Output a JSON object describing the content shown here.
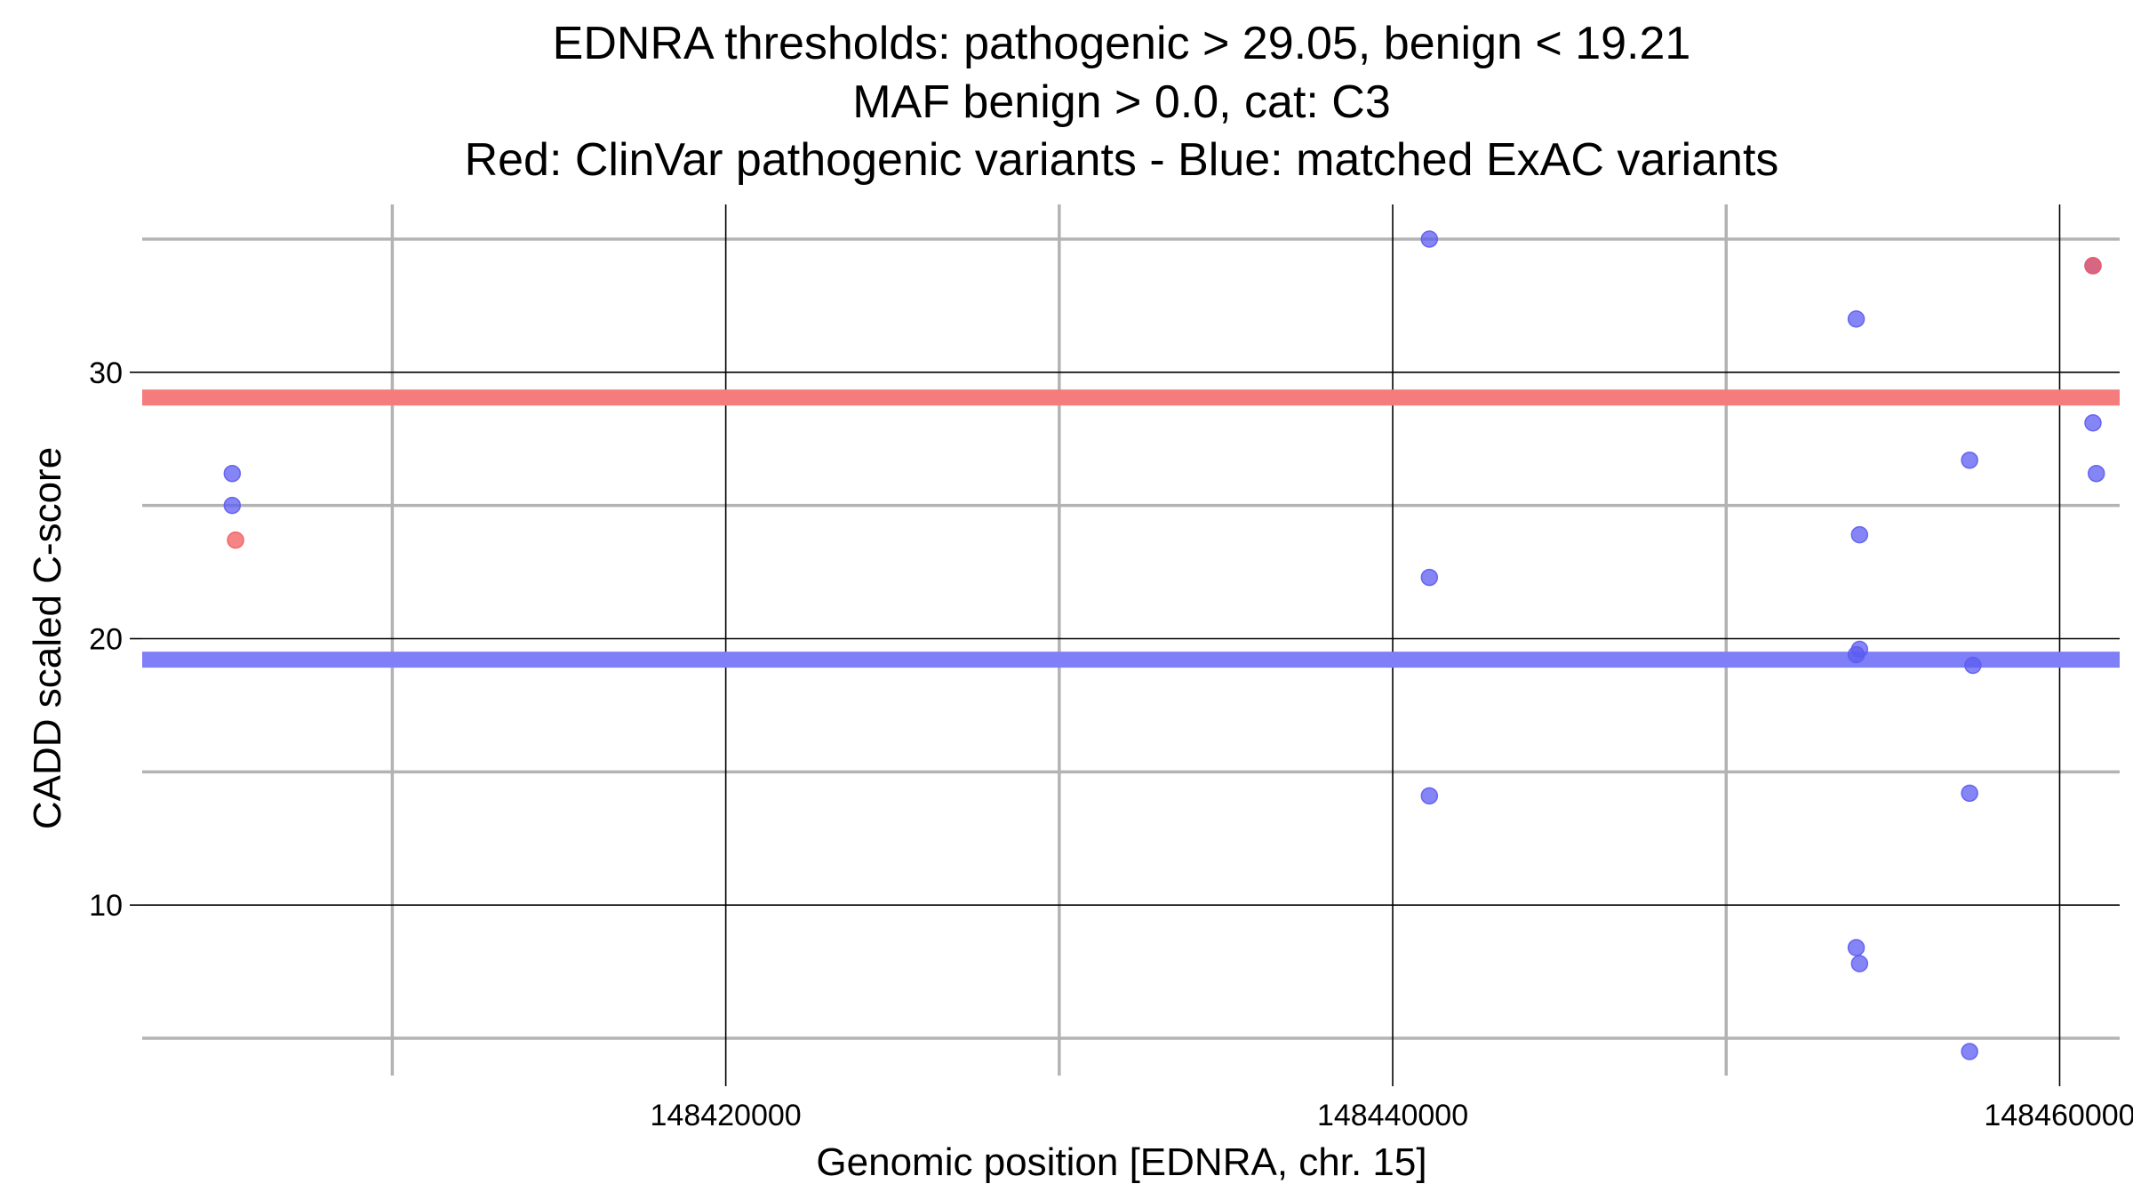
{
  "chart_data": {
    "type": "scatter",
    "title_lines": [
      "EDNRA thresholds: pathogenic > 29.05, benign < 19.21",
      "MAF benign > 0.0, cat: C3",
      "Red: ClinVar pathogenic variants - Blue: matched ExAC variants"
    ],
    "xlabel": "Genomic position [EDNRA, chr. 15]",
    "ylabel": "CADD scaled C-score",
    "xlim": [
      148402500,
      148461800
    ],
    "ylim": [
      3.6,
      36.3
    ],
    "x_ticks": [
      148420000,
      148440000,
      148460000
    ],
    "x_tick_labels": [
      "148420000",
      "148440000",
      "148460000"
    ],
    "x_minor_gridlines": [
      148410000,
      148430000,
      148450000
    ],
    "y_ticks": [
      10,
      20,
      30
    ],
    "y_tick_labels": [
      "10",
      "20",
      "30"
    ],
    "y_minor_gridlines": [
      5,
      15,
      25,
      35
    ],
    "grid": true,
    "thresholds": [
      {
        "name": "pathogenic",
        "value": 29.05,
        "color": "#f47c7c"
      },
      {
        "name": "benign",
        "value": 19.21,
        "color": "#7f7ff7"
      }
    ],
    "series": [
      {
        "color": "#5c5cf2",
        "points": [
          {
            "x": 148405200,
            "y": 26.2
          },
          {
            "x": 148405200,
            "y": 25.0
          },
          {
            "x": 148441100,
            "y": 35.0
          },
          {
            "x": 148441100,
            "y": 22.3
          },
          {
            "x": 148441100,
            "y": 14.1
          },
          {
            "x": 148453900,
            "y": 32.0
          },
          {
            "x": 148454000,
            "y": 23.9
          },
          {
            "x": 148454000,
            "y": 19.6
          },
          {
            "x": 148453900,
            "y": 19.4
          },
          {
            "x": 148453900,
            "y": 8.4
          },
          {
            "x": 148454000,
            "y": 7.8
          },
          {
            "x": 148457300,
            "y": 26.7
          },
          {
            "x": 148457400,
            "y": 19.0
          },
          {
            "x": 148457300,
            "y": 14.2
          },
          {
            "x": 148457300,
            "y": 4.5
          },
          {
            "x": 148461000,
            "y": 28.1
          },
          {
            "x": 148461100,
            "y": 26.2
          },
          {
            "x": 148461000,
            "y": 34.0
          }
        ]
      },
      {
        "color": "#f25c5c",
        "points": [
          {
            "x": 148405300,
            "y": 23.7
          },
          {
            "x": 148461000,
            "y": 34.0
          }
        ]
      }
    ]
  }
}
